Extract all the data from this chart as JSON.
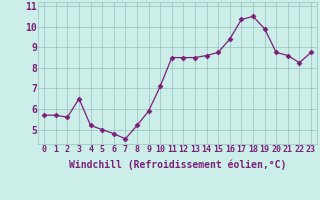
{
  "x": [
    0,
    1,
    2,
    3,
    4,
    5,
    6,
    7,
    8,
    9,
    10,
    11,
    12,
    13,
    14,
    15,
    16,
    17,
    18,
    19,
    20,
    21,
    22,
    23
  ],
  "y": [
    5.7,
    5.7,
    5.6,
    6.5,
    5.2,
    5.0,
    4.8,
    4.55,
    5.2,
    5.9,
    7.1,
    8.5,
    8.5,
    8.5,
    8.6,
    8.75,
    9.4,
    10.35,
    10.5,
    9.9,
    8.75,
    8.6,
    8.25,
    8.75
  ],
  "line_color": "#7B1F7A",
  "marker": "D",
  "marker_size": 2.5,
  "bg_color": "#cceee8",
  "grid_color": "#9bbfbf",
  "xlabel": "Windchill (Refroidissement éolien,°C)",
  "ylim": [
    4.3,
    11.2
  ],
  "xlim": [
    -0.5,
    23.5
  ],
  "yticks": [
    5,
    6,
    7,
    8,
    9,
    10,
    11
  ],
  "xticks": [
    0,
    1,
    2,
    3,
    4,
    5,
    6,
    7,
    8,
    9,
    10,
    11,
    12,
    13,
    14,
    15,
    16,
    17,
    18,
    19,
    20,
    21,
    22,
    23
  ],
  "xtick_labels": [
    "0",
    "1",
    "2",
    "3",
    "4",
    "5",
    "6",
    "7",
    "8",
    "9",
    "10",
    "11",
    "12",
    "13",
    "14",
    "15",
    "16",
    "17",
    "18",
    "19",
    "20",
    "21",
    "22",
    "23"
  ],
  "tick_color": "#7B1F7A",
  "xlabel_fontsize": 7,
  "xtick_fontsize": 6,
  "ytick_fontsize": 7
}
